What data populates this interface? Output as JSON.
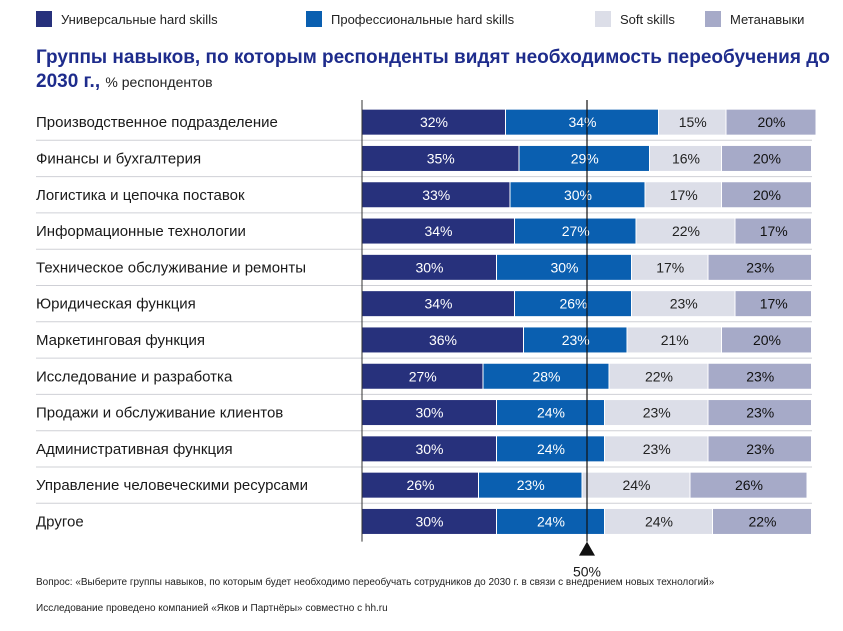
{
  "legend": [
    {
      "label": "Универсальные hard skills",
      "color": "#27317c",
      "series_index": 0
    },
    {
      "label": "Профессиональные hard skills",
      "color": "#0a5fb0",
      "series_index": 1
    },
    {
      "label": "Soft skills",
      "color": "#dcdee8",
      "series_index": 2
    },
    {
      "label": "Метанавыки",
      "color": "#a6aac8",
      "series_index": 3
    }
  ],
  "title": {
    "main": "Группы навыков, по которым респонденты видят необходимость переобучения до 2030 г.,",
    "unit": "% респондентов"
  },
  "chart_data": {
    "type": "bar",
    "orientation": "horizontal",
    "stacked": true,
    "value_suffix": "%",
    "categories": [
      "Производственное подразделение",
      "Финансы и бухгалтерия",
      "Логистика и цепочка поставок",
      "Информационные технологии",
      "Техническое обслуживание и ремонты",
      "Юридическая функция",
      "Маркетинговая функция",
      "Исследование и разработка",
      "Продажи и обслуживание клиентов",
      "Административная функция",
      "Управление человеческими ресурсами",
      "Другое"
    ],
    "series": [
      {
        "name": "Универсальные hard skills",
        "color": "#27317c",
        "label_color": "#ffffff",
        "values": [
          32,
          35,
          33,
          34,
          30,
          34,
          36,
          27,
          30,
          30,
          26,
          30
        ]
      },
      {
        "name": "Профессиональные hard skills",
        "color": "#0a5fb0",
        "label_color": "#ffffff",
        "values": [
          34,
          29,
          30,
          27,
          30,
          26,
          23,
          28,
          24,
          24,
          23,
          24
        ]
      },
      {
        "name": "Soft skills",
        "color": "#dcdee8",
        "label_color": "#222222",
        "values": [
          15,
          16,
          17,
          22,
          17,
          23,
          21,
          22,
          23,
          23,
          24,
          24
        ]
      },
      {
        "name": "Метанавыки",
        "color": "#a6aac8",
        "label_color": "#111111",
        "values": [
          20,
          20,
          20,
          17,
          23,
          17,
          20,
          23,
          23,
          23,
          26,
          22
        ]
      }
    ],
    "xlim": [
      0,
      100
    ],
    "reference_line": {
      "value": 50,
      "label": "50%"
    },
    "grid": false
  },
  "footnotes": {
    "question": "Вопрос: «Выберите группы навыков, по которым будет необходимо переобучать сотрудников до 2030 г. в связи с внедрением новых технологий»",
    "source": "Исследование проведено компанией «Яков и Партнёры» совместно с hh.ru"
  }
}
